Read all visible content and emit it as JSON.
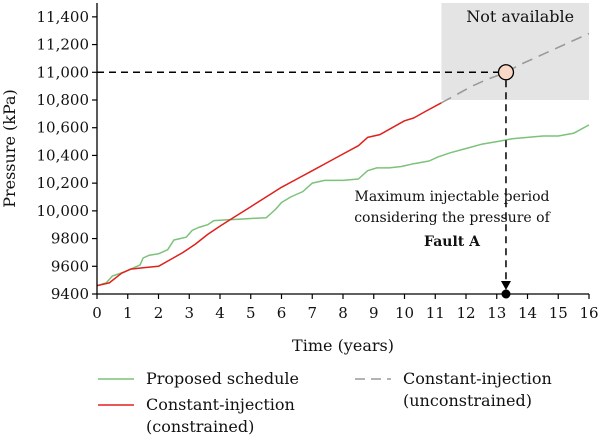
{
  "chart_data": {
    "type": "line",
    "xlabel": "Time (years)",
    "ylabel": "Pressure (kPa)",
    "xlim": [
      0,
      16
    ],
    "ylim": [
      9400,
      11500
    ],
    "x_ticks": [
      0,
      1,
      2,
      3,
      4,
      5,
      6,
      7,
      8,
      9,
      10,
      11,
      12,
      13,
      14,
      15,
      16
    ],
    "y_ticks": [
      9400,
      9600,
      9800,
      10000,
      10200,
      10400,
      10600,
      10800,
      11000,
      11200,
      11400
    ],
    "y_tick_labels": [
      "9400",
      "9600",
      "9800",
      "10,000",
      "10,200",
      "10,400",
      "10,600",
      "10,800",
      "11,000",
      "11,200",
      "11,400"
    ],
    "grid": false,
    "series": [
      {
        "name": "Proposed schedule",
        "color": "#7cc27a",
        "style": "solid",
        "points": [
          [
            0,
            9460
          ],
          [
            0.3,
            9480
          ],
          [
            0.5,
            9530
          ],
          [
            0.9,
            9560
          ],
          [
            1.1,
            9580
          ],
          [
            1.4,
            9610
          ],
          [
            1.5,
            9660
          ],
          [
            1.7,
            9680
          ],
          [
            2.0,
            9690
          ],
          [
            2.1,
            9700
          ],
          [
            2.3,
            9720
          ],
          [
            2.5,
            9790
          ],
          [
            2.7,
            9800
          ],
          [
            2.9,
            9810
          ],
          [
            3.1,
            9860
          ],
          [
            3.3,
            9880
          ],
          [
            3.6,
            9900
          ],
          [
            3.8,
            9930
          ],
          [
            4.2,
            9935
          ],
          [
            4.6,
            9940
          ],
          [
            5.0,
            9945
          ],
          [
            5.5,
            9950
          ],
          [
            5.8,
            10010
          ],
          [
            6.0,
            10060
          ],
          [
            6.3,
            10100
          ],
          [
            6.7,
            10140
          ],
          [
            7.0,
            10200
          ],
          [
            7.4,
            10220
          ],
          [
            8.0,
            10220
          ],
          [
            8.5,
            10230
          ],
          [
            8.8,
            10290
          ],
          [
            9.1,
            10310
          ],
          [
            9.5,
            10310
          ],
          [
            9.9,
            10320
          ],
          [
            10.3,
            10340
          ],
          [
            10.8,
            10360
          ],
          [
            11.1,
            10390
          ],
          [
            11.5,
            10420
          ],
          [
            12.0,
            10450
          ],
          [
            12.5,
            10480
          ],
          [
            13.0,
            10500
          ],
          [
            13.5,
            10520
          ],
          [
            14.0,
            10530
          ],
          [
            14.5,
            10540
          ],
          [
            15.0,
            10540
          ],
          [
            15.5,
            10560
          ],
          [
            16.0,
            10620
          ]
        ]
      },
      {
        "name": "Constant-injection\n(constrained)",
        "color": "#e0201b",
        "style": "solid",
        "points": [
          [
            0,
            9460
          ],
          [
            0.4,
            9480
          ],
          [
            0.8,
            9550
          ],
          [
            1.1,
            9580
          ],
          [
            1.5,
            9590
          ],
          [
            2.0,
            9600
          ],
          [
            2.4,
            9650
          ],
          [
            2.8,
            9700
          ],
          [
            3.2,
            9760
          ],
          [
            3.6,
            9830
          ],
          [
            4.0,
            9890
          ],
          [
            4.5,
            9960
          ],
          [
            5.0,
            10030
          ],
          [
            5.5,
            10100
          ],
          [
            6.0,
            10170
          ],
          [
            6.5,
            10230
          ],
          [
            7.0,
            10290
          ],
          [
            7.5,
            10350
          ],
          [
            8.0,
            10410
          ],
          [
            8.5,
            10470
          ],
          [
            8.8,
            10530
          ],
          [
            9.2,
            10550
          ],
          [
            9.6,
            10600
          ],
          [
            10.0,
            10650
          ],
          [
            10.3,
            10670
          ],
          [
            10.7,
            10720
          ],
          [
            11.2,
            10780
          ]
        ]
      },
      {
        "name": "Constant-injection\n(unconstrained)",
        "color": "#9a9a9a",
        "style": "dashed",
        "points": [
          [
            11.2,
            10780
          ],
          [
            11.7,
            10840
          ],
          [
            12.2,
            10900
          ],
          [
            12.7,
            10950
          ],
          [
            13.2,
            10990
          ],
          [
            13.8,
            11060
          ],
          [
            14.5,
            11130
          ],
          [
            15.2,
            11200
          ],
          [
            16.0,
            11280
          ]
        ]
      }
    ],
    "unavailable_region": {
      "label": "Not available",
      "x_from": 11.2,
      "x_to": 16,
      "y_from": 10800,
      "y_to": 11500,
      "color": "#e4e4e4"
    },
    "threshold": {
      "y": 11000,
      "x": 13.3
    },
    "annotation": {
      "lines": [
        "Maximum injectable period",
        "considering the pressure of"
      ],
      "bold_line": "Fault A"
    }
  },
  "legend": {
    "left": [
      {
        "label": "Proposed schedule",
        "color": "#7cc27a",
        "style": "solid"
      },
      {
        "label_lines": [
          "Constant-injection",
          "(constrained)"
        ],
        "color": "#e0201b",
        "style": "solid"
      }
    ],
    "right": [
      {
        "label_lines": [
          "Constant-injection",
          "(unconstrained)"
        ],
        "color": "#9a9a9a",
        "style": "dashed"
      }
    ]
  }
}
